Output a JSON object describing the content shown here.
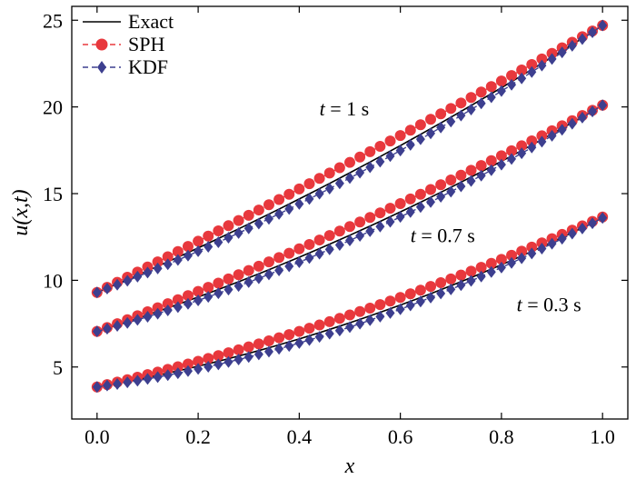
{
  "chart_data": {
    "type": "line",
    "xlabel": "x",
    "ylabel": "u(x,t)",
    "xlim": [
      -0.05,
      1.05
    ],
    "ylim": [
      2.0,
      25.8
    ],
    "xticks": [
      0.0,
      0.2,
      0.4,
      0.6,
      0.8,
      1.0
    ],
    "xtick_labels": [
      "0.0",
      "0.2",
      "0.4",
      "0.6",
      "0.8",
      "1.0"
    ],
    "yticks": [
      5,
      10,
      15,
      20,
      25
    ],
    "ytick_labels": [
      "5",
      "10",
      "15",
      "20",
      "25"
    ],
    "grid": false,
    "legend": {
      "position": "top-left",
      "entries": [
        {
          "label": "Exact",
          "color": "#000000",
          "marker": "none"
        },
        {
          "label": "SPH",
          "color": "#e8383d",
          "marker": "circle"
        },
        {
          "label": "KDF",
          "color": "#3d3f8f",
          "marker": "diamond"
        }
      ]
    },
    "annotations": [
      {
        "var": "t",
        "rest": " = 1 s",
        "at": [
          0.44,
          19.5
        ]
      },
      {
        "var": "t",
        "rest": " = 0.7 s",
        "at": [
          0.62,
          12.2
        ]
      },
      {
        "var": "t",
        "rest": " = 0.3 s",
        "at": [
          0.83,
          8.2
        ]
      }
    ],
    "point_count": 51,
    "series": [
      {
        "name": "Exact",
        "time": "t = 0.3 s",
        "x_start": 0.0,
        "x_end": 1.0,
        "y_start": 3.85,
        "y_mid": 7.55,
        "y_end": 13.6
      },
      {
        "name": "SPH",
        "time": "t = 0.3 s",
        "x_start": 0.0,
        "x_end": 1.0,
        "y_start": 3.85,
        "y_mid": 8.0,
        "y_end": 13.65
      },
      {
        "name": "KDF",
        "time": "t = 0.3 s",
        "x_start": 0.0,
        "x_end": 1.0,
        "y_start": 3.85,
        "y_mid": 7.3,
        "y_end": 13.6
      },
      {
        "name": "Exact",
        "time": "t = 0.7 s",
        "x_start": 0.0,
        "x_end": 1.0,
        "y_start": 7.05,
        "y_mid": 12.6,
        "y_end": 20.1
      },
      {
        "name": "SPH",
        "time": "t = 0.7 s",
        "x_start": 0.0,
        "x_end": 1.0,
        "y_start": 7.05,
        "y_mid": 13.1,
        "y_end": 20.1
      },
      {
        "name": "KDF",
        "time": "t = 0.7 s",
        "x_start": 0.0,
        "x_end": 1.0,
        "y_start": 7.05,
        "y_mid": 12.3,
        "y_end": 20.1
      },
      {
        "name": "Exact",
        "time": "t = 1 s",
        "x_start": 0.0,
        "x_end": 1.0,
        "y_start": 9.3,
        "y_mid": 16.2,
        "y_end": 24.7
      },
      {
        "name": "SPH",
        "time": "t = 1 s",
        "x_start": 0.0,
        "x_end": 1.0,
        "y_start": 9.3,
        "y_mid": 16.8,
        "y_end": 24.7
      },
      {
        "name": "KDF",
        "time": "t = 1 s",
        "x_start": 0.0,
        "x_end": 1.0,
        "y_start": 9.3,
        "y_mid": 15.9,
        "y_end": 24.7
      }
    ]
  }
}
